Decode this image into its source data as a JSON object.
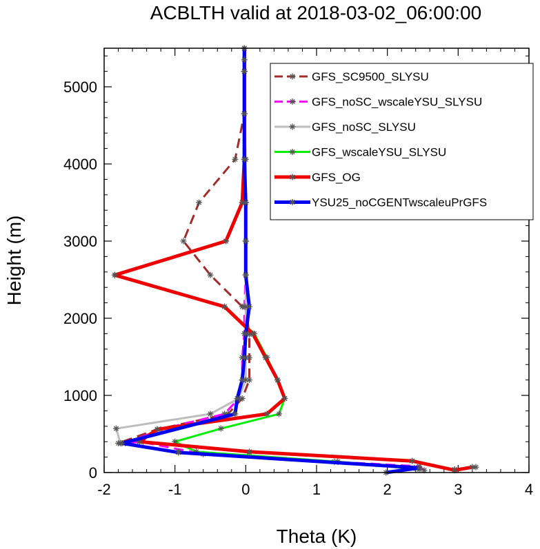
{
  "chart_data": {
    "type": "line",
    "title": "ACBLTH valid at 2018-03-02_06:00:00",
    "xlabel": "Theta (K)",
    "ylabel": "Height (m)",
    "xlim": [
      -2,
      4
    ],
    "ylim": [
      0,
      5500
    ],
    "xticks": [
      "-2",
      "-1",
      "0",
      "1",
      "2",
      "3",
      "4"
    ],
    "yticks": [
      "0",
      "1000",
      "2000",
      "3000",
      "4000",
      "5000"
    ],
    "legend_position": "top-right",
    "series": [
      {
        "name": "GFS_SC9500_SLYSU",
        "color": "#a52a2a",
        "dash": "dashed",
        "width": 3,
        "x": [
          3.25,
          2.95,
          2.35,
          0.05,
          -1.45,
          -1.8,
          -1.25,
          -0.25,
          -0.05,
          0.05,
          0.05,
          0.05,
          0.0,
          -0.05,
          -0.5,
          -0.88,
          -0.66,
          -0.15,
          -0.02,
          -0.02,
          -0.02
        ],
        "y": [
          70,
          40,
          150,
          260,
          400,
          380,
          560,
          760,
          960,
          1200,
          1490,
          1790,
          2150,
          2150,
          2560,
          3000,
          3500,
          4060,
          4650,
          5200,
          5500
        ]
      },
      {
        "name": "GFS_noSC_wscaleYSU_SLYSU",
        "color": "#ff00ff",
        "dash": "dashed",
        "width": 3,
        "x": [
          2.52,
          2.45,
          1.25,
          -0.6,
          -1.5,
          -1.7,
          -1.2,
          -0.3,
          -0.1,
          -0.05,
          -0.05,
          -0.02,
          -0.02,
          0.0,
          0.0,
          0.0,
          -0.02,
          -0.02,
          -0.02,
          -0.02
        ],
        "y": [
          30,
          80,
          140,
          240,
          400,
          380,
          560,
          760,
          960,
          1200,
          1490,
          1800,
          2150,
          2560,
          3000,
          3500,
          4060,
          4650,
          5200,
          5500
        ]
      },
      {
        "name": "GFS_noSC_SLYSU",
        "color": "#bdbdbd",
        "dash": "solid",
        "width": 3,
        "x": [
          2.38,
          1.3,
          -0.95,
          -1.77,
          -1.83,
          -0.5,
          -0.1,
          0.0,
          0.0,
          0.0,
          0.0,
          0.0,
          0.0,
          0.0,
          0.0,
          -0.02,
          -0.02
        ],
        "y": [
          60,
          140,
          270,
          380,
          570,
          760,
          960,
          1200,
          1490,
          1800,
          2150,
          2560,
          3000,
          3500,
          4060,
          4650,
          5500
        ]
      },
      {
        "name": "GFS_wscaleYSU_SLYSU",
        "color": "#00ee00",
        "dash": "solid",
        "width": 3,
        "x": [
          2.45,
          1.3,
          -0.7,
          -1.0,
          -0.35,
          0.47,
          0.55,
          0.45,
          0.3,
          0.12,
          -0.3,
          -1.85,
          -0.28,
          -0.05,
          -0.02,
          -0.02,
          -0.02,
          -0.02
        ],
        "y": [
          40,
          140,
          270,
          400,
          570,
          760,
          960,
          1200,
          1490,
          1800,
          2150,
          2560,
          3000,
          3500,
          4060,
          4650,
          5200,
          5500
        ]
      },
      {
        "name": "GFS_OG",
        "color": "#ee0000",
        "dash": "solid",
        "width": 5,
        "x": [
          3.2,
          2.95,
          2.35,
          0.05,
          -1.5,
          -1.25,
          0.3,
          0.55,
          0.45,
          0.28,
          0.1,
          -0.3,
          -1.85,
          -0.28,
          -0.05,
          -0.02,
          -0.02,
          -0.02,
          -0.02
        ],
        "y": [
          70,
          30,
          150,
          270,
          400,
          560,
          760,
          960,
          1200,
          1490,
          1800,
          2150,
          2560,
          3000,
          3500,
          4060,
          4650,
          5200,
          5500
        ]
      },
      {
        "name": "YSU25_noCGENTwscaleuPrGFS",
        "color": "#0000ee",
        "dash": "solid",
        "width": 5,
        "x": [
          1.98,
          2.45,
          -0.95,
          -1.75,
          -0.15,
          -0.12,
          -0.05,
          -0.02,
          0.0,
          0.05,
          0.0,
          0.0,
          0.0,
          -0.02,
          -0.02,
          -0.02,
          -0.02,
          -0.02
        ],
        "y": [
          0,
          60,
          260,
          380,
          760,
          960,
          1200,
          1490,
          1800,
          2150,
          2560,
          3000,
          3500,
          4060,
          4650,
          5200,
          5350,
          5500
        ]
      }
    ]
  }
}
